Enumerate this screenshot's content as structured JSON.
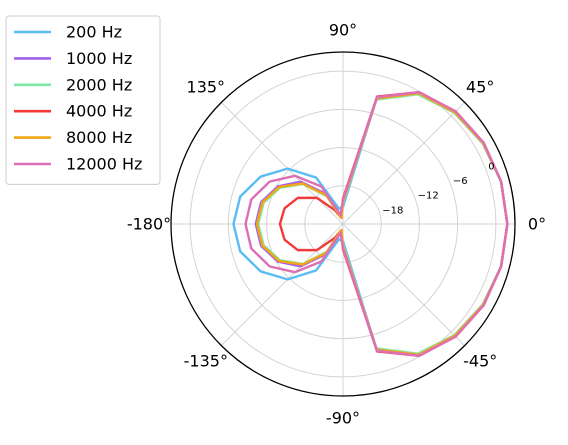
{
  "chart_data": {
    "type": "line",
    "projection": "polar",
    "title": "",
    "angle_unit": "degrees",
    "angular_tick_labels": [
      "0°",
      "45°",
      "90°",
      "135°",
      "-180°",
      "-135°",
      "-90°",
      "-45°"
    ],
    "radial_tick_labels": [
      "−18",
      "−12",
      "−6",
      "0"
    ],
    "radial_ticks": [
      -18,
      -12,
      -6,
      0
    ],
    "rlim": [
      -24,
      3
    ],
    "grid": true,
    "legend_position": "upper-left, outside plot",
    "angles": [
      -180,
      -165,
      -150,
      -135,
      -120,
      -105,
      -90,
      -75,
      -60,
      -45,
      -30,
      -15,
      0,
      15,
      30,
      45,
      60,
      75,
      90,
      105,
      120,
      135,
      150,
      165,
      180
    ],
    "series": [
      {
        "name": "200 Hz",
        "color": "#5bbcf5",
        "values": [
          -6.8,
          -7.3,
          -9.1,
          -11.7,
          -15.6,
          -21.5,
          -21.3,
          -3.7,
          -0.2,
          0.9,
          1.4,
          1.7,
          1.8,
          1.7,
          1.4,
          0.9,
          -0.2,
          -3.7,
          -21.3,
          -21.5,
          -15.6,
          -11.7,
          -9.1,
          -7.3,
          -6.8
        ]
      },
      {
        "name": "1000 Hz",
        "color": "#a560e8",
        "values": [
          -10.3,
          -10.7,
          -12.2,
          -14.6,
          -18.5,
          -23.0,
          -20.3,
          -3.5,
          -0.2,
          0.9,
          1.4,
          1.7,
          1.8,
          1.7,
          1.4,
          0.9,
          -0.2,
          -3.5,
          -20.3,
          -23.0,
          -18.5,
          -14.6,
          -12.2,
          -10.7,
          -10.3
        ]
      },
      {
        "name": "2000 Hz",
        "color": "#7ee8a8",
        "values": [
          -10.7,
          -11.1,
          -12.6,
          -15.1,
          -19.0,
          -23.0,
          -20.7,
          -3.8,
          -0.5,
          0.7,
          1.3,
          1.7,
          1.8,
          1.7,
          1.3,
          0.7,
          -0.5,
          -3.8,
          -20.7,
          -23.0,
          -19.0,
          -15.1,
          -12.6,
          -11.1,
          -10.7
        ]
      },
      {
        "name": "4000 Hz",
        "color": "#f23a3a",
        "values": [
          -14.1,
          -14.5,
          -15.8,
          -18.2,
          -21.5,
          -23.0,
          -20.0,
          -3.3,
          -0.1,
          1.0,
          1.5,
          1.7,
          1.8,
          1.7,
          1.5,
          1.0,
          -0.1,
          -3.3,
          -20.0,
          -23.0,
          -21.5,
          -18.2,
          -15.8,
          -14.5,
          -14.1
        ]
      },
      {
        "name": "8000 Hz",
        "color": "#f2a516",
        "values": [
          -10.5,
          -10.9,
          -12.4,
          -15.0,
          -18.8,
          -23.0,
          -20.5,
          -3.6,
          -0.3,
          0.8,
          1.4,
          1.7,
          1.8,
          1.7,
          1.4,
          0.8,
          -0.3,
          -3.6,
          -20.5,
          -23.0,
          -18.8,
          -15.0,
          -12.4,
          -10.9,
          -10.5
        ]
      },
      {
        "name": "12000 Hz",
        "color": "#dd6fb7",
        "values": [
          -8.7,
          -9.1,
          -10.7,
          -13.3,
          -17.2,
          -22.5,
          -20.2,
          -3.4,
          -0.1,
          1.0,
          1.5,
          1.7,
          1.8,
          1.7,
          1.5,
          1.0,
          -0.1,
          -3.4,
          -20.2,
          -22.5,
          -17.2,
          -13.3,
          -10.7,
          -9.1,
          -8.7
        ]
      }
    ]
  }
}
